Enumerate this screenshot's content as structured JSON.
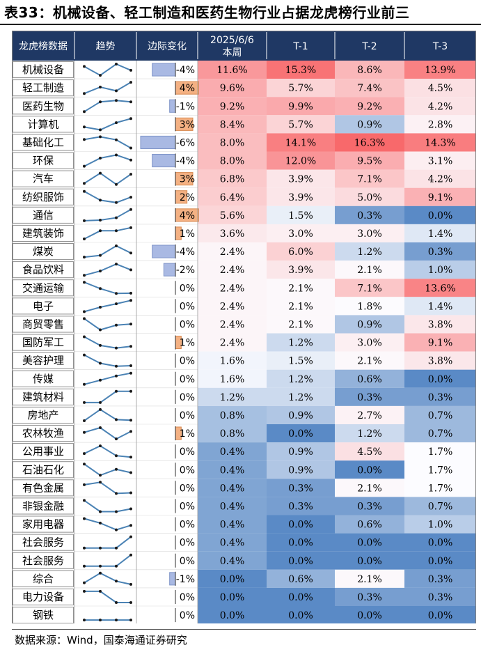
{
  "title": "表33：机械设备、轻工制造和医药生物行业占据龙虎榜行业前三",
  "source": "数据来源：Wind，国泰海通证券研究",
  "colors": {
    "header_bg": "#1f3864",
    "sparkline": "#4a82b4",
    "bar_negative": "#a9b9e3",
    "bar_positive": "#f4b183",
    "cell_high": "#f8696b",
    "cell_mid": "#fcfcff",
    "cell_low": "#5a8ac6"
  },
  "chart_data": {
    "type": "table",
    "title": "表33：机械设备、轻工制造和医药生物行业占据龙虎榜行业前三",
    "columns": [
      "龙虎榜数据",
      "趋势",
      "边际变化",
      "2025/6/6 本周",
      "T-1",
      "T-2",
      "T-3"
    ],
    "rows": [
      {
        "name": "机械设备",
        "margin": -4,
        "margin_label": "-4%",
        "values": [
          "11.6%",
          "15.3%",
          "8.6%",
          "13.9%"
        ]
      },
      {
        "name": "轻工制造",
        "margin": 4,
        "margin_label": "4%",
        "values": [
          "9.6%",
          "5.7%",
          "7.4%",
          "4.5%"
        ]
      },
      {
        "name": "医药生物",
        "margin": -1,
        "margin_label": "-1%",
        "values": [
          "9.2%",
          "9.9%",
          "9.2%",
          "4.2%"
        ]
      },
      {
        "name": "计算机",
        "margin": 3,
        "margin_label": "3%",
        "values": [
          "8.4%",
          "5.7%",
          "0.9%",
          "2.8%"
        ]
      },
      {
        "name": "基础化工",
        "margin": -6,
        "margin_label": "-6%",
        "values": [
          "8.0%",
          "14.1%",
          "16.3%",
          "14.3%"
        ]
      },
      {
        "name": "环保",
        "margin": -4,
        "margin_label": "-4%",
        "values": [
          "8.0%",
          "12.0%",
          "9.5%",
          "3.1%"
        ]
      },
      {
        "name": "汽车",
        "margin": 3,
        "margin_label": "3%",
        "values": [
          "6.8%",
          "3.9%",
          "7.1%",
          "4.2%"
        ]
      },
      {
        "name": "纺织服饰",
        "margin": 2,
        "margin_label": "2%",
        "values": [
          "6.4%",
          "3.9%",
          "5.0%",
          "9.1%"
        ]
      },
      {
        "name": "通信",
        "margin": 4,
        "margin_label": "4%",
        "values": [
          "5.6%",
          "1.5%",
          "0.3%",
          "0.0%"
        ]
      },
      {
        "name": "建筑装饰",
        "margin": 1,
        "margin_label": "1%",
        "values": [
          "3.6%",
          "3.0%",
          "3.0%",
          "1.4%"
        ]
      },
      {
        "name": "煤炭",
        "margin": -4,
        "margin_label": "-4%",
        "values": [
          "2.4%",
          "6.0%",
          "1.2%",
          "0.3%"
        ]
      },
      {
        "name": "食品饮料",
        "margin": -2,
        "margin_label": "-2%",
        "values": [
          "2.4%",
          "3.9%",
          "2.1%",
          "1.0%"
        ]
      },
      {
        "name": "交通运输",
        "margin": 0,
        "margin_label": "0%",
        "values": [
          "2.4%",
          "2.1%",
          "7.1%",
          "13.6%"
        ]
      },
      {
        "name": "电子",
        "margin": 0,
        "margin_label": "0%",
        "values": [
          "2.4%",
          "2.1%",
          "1.8%",
          "1.4%"
        ]
      },
      {
        "name": "商贸零售",
        "margin": 0,
        "margin_label": "0%",
        "values": [
          "2.4%",
          "2.1%",
          "0.9%",
          "3.8%"
        ]
      },
      {
        "name": "国防军工",
        "margin": 1,
        "margin_label": "1%",
        "values": [
          "2.4%",
          "1.2%",
          "3.0%",
          "9.1%"
        ]
      },
      {
        "name": "美容护理",
        "margin": 0,
        "margin_label": "0%",
        "values": [
          "1.6%",
          "1.5%",
          "2.1%",
          "3.8%"
        ]
      },
      {
        "name": "传媒",
        "margin": 0,
        "margin_label": "0%",
        "values": [
          "1.6%",
          "1.2%",
          "0.6%",
          "0.0%"
        ]
      },
      {
        "name": "建筑材料",
        "margin": 0,
        "margin_label": "0%",
        "values": [
          "1.2%",
          "1.2%",
          "0.3%",
          "0.3%"
        ]
      },
      {
        "name": "房地产",
        "margin": 0,
        "margin_label": "0%",
        "values": [
          "0.8%",
          "0.9%",
          "2.7%",
          "0.7%"
        ]
      },
      {
        "name": "农林牧渔",
        "margin": 1,
        "margin_label": "1%",
        "values": [
          "0.8%",
          "0.0%",
          "1.2%",
          "0.7%"
        ]
      },
      {
        "name": "公用事业",
        "margin": 0,
        "margin_label": "0%",
        "values": [
          "0.4%",
          "0.9%",
          "4.5%",
          "1.7%"
        ]
      },
      {
        "name": "石油石化",
        "margin": 0,
        "margin_label": "0%",
        "values": [
          "0.4%",
          "0.9%",
          "0.0%",
          "1.7%"
        ]
      },
      {
        "name": "有色金属",
        "margin": 0,
        "margin_label": "0%",
        "values": [
          "0.4%",
          "0.3%",
          "2.1%",
          "1.7%"
        ]
      },
      {
        "name": "非银金融",
        "margin": 0,
        "margin_label": "0%",
        "values": [
          "0.4%",
          "0.3%",
          "0.3%",
          "0.7%"
        ]
      },
      {
        "name": "家用电器",
        "margin": 0,
        "margin_label": "0%",
        "values": [
          "0.4%",
          "0.0%",
          "0.6%",
          "1.0%"
        ]
      },
      {
        "name": "社会服务",
        "margin": 0,
        "margin_label": "0%",
        "values": [
          "0.4%",
          "0.0%",
          "0.0%",
          "0.0%"
        ]
      },
      {
        "name": "社会服务",
        "margin": 0,
        "margin_label": "0%",
        "values": [
          "0.4%",
          "0.0%",
          "0.0%",
          "0.0%"
        ]
      },
      {
        "name": "综合",
        "margin": -1,
        "margin_label": "-1%",
        "values": [
          "0.0%",
          "0.6%",
          "2.1%",
          "0.3%"
        ]
      },
      {
        "name": "电力设备",
        "margin": 0,
        "margin_label": "0%",
        "values": [
          "0.0%",
          "0.0%",
          "0.3%",
          "0.3%"
        ]
      },
      {
        "name": "钢铁",
        "margin": 0,
        "margin_label": "0%",
        "values": [
          "0.0%",
          "0.0%",
          "0.0%",
          "0.0%"
        ]
      }
    ]
  }
}
